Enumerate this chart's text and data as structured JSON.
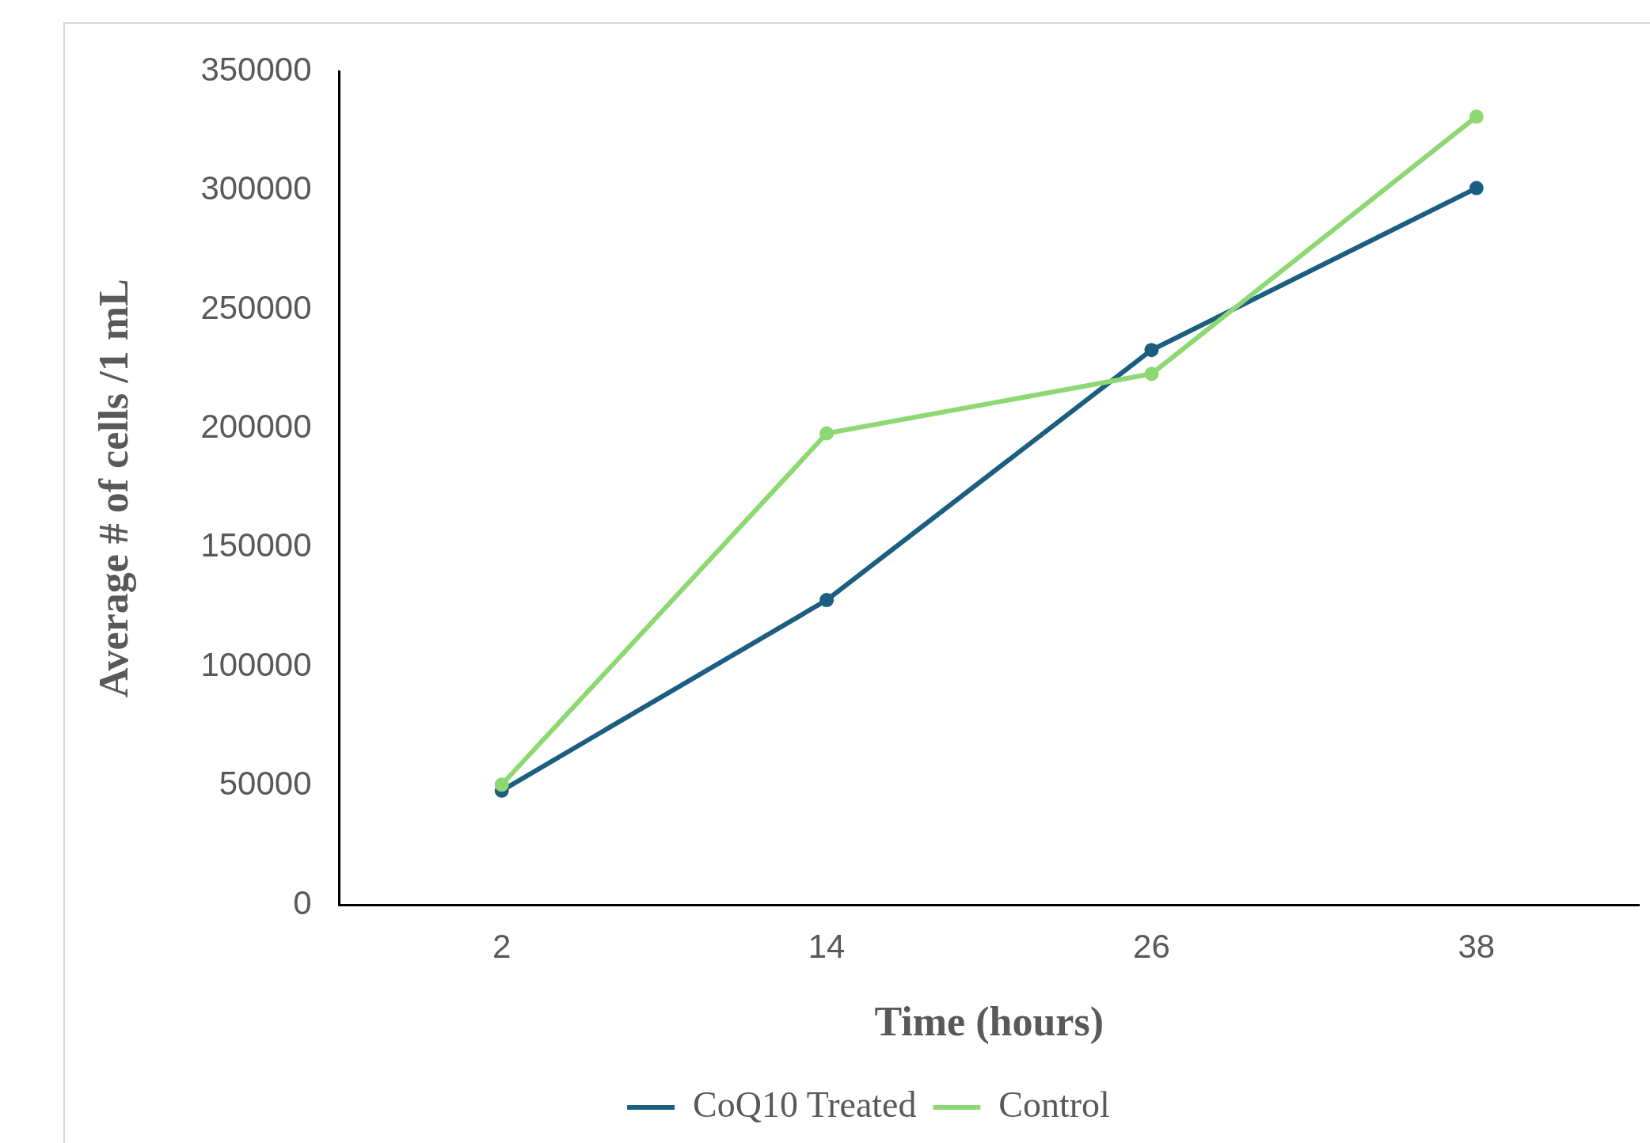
{
  "chart_data": {
    "type": "line",
    "xlabel": "Time (hours)",
    "ylabel": "Average # of cells /1 mL",
    "categories": [
      "2",
      "14",
      "26",
      "38"
    ],
    "series": [
      {
        "name": "CoQ10 Treated",
        "color": "#1b5e80",
        "values": [
          48000,
          128000,
          233000,
          301000
        ]
      },
      {
        "name": "Control",
        "color": "#8ed873",
        "values": [
          50500,
          198000,
          223000,
          331000
        ]
      }
    ],
    "ylim": [
      0,
      350000
    ],
    "yticks": [
      0,
      50000,
      100000,
      150000,
      200000,
      250000,
      300000,
      350000
    ],
    "grid": false,
    "legend": "bottom",
    "marker": "circle",
    "line_style": "solid"
  }
}
